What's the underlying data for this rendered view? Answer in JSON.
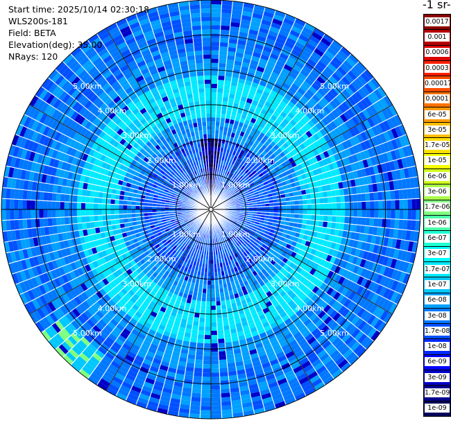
{
  "info": {
    "start_time": "Start time: 2025/10/14 02:30:18",
    "instrument": "WLS200s-181",
    "field": "Field: BETA",
    "elevation": "Elevation(deg): 35.00",
    "nrays": "NRays: 120"
  },
  "colorbar": {
    "unit_label": "-1 sr-",
    "labels": [
      "0.0017",
      "0.001",
      "0.0006",
      "0.0003",
      "0.00017",
      "0.0001",
      "6e-05",
      "3e-05",
      "1.7e-05",
      "1e-05",
      "6e-06",
      "3e-06",
      "1.7e-06",
      "1e-06",
      "6e-07",
      "3e-07",
      "1.7e-07",
      "1e-07",
      "6e-08",
      "3e-08",
      "1.7e-08",
      "1e-08",
      "6e-09",
      "3e-09",
      "1.7e-09",
      "1e-09"
    ],
    "colors": [
      "#8b0000",
      "#b40000",
      "#dc0000",
      "#ff1e00",
      "#ff4b00",
      "#ff7300",
      "#ff9a00",
      "#ffbd00",
      "#ffe000",
      "#f5ff00",
      "#d2ff1e",
      "#aaff4b",
      "#80ff80",
      "#4bffaa",
      "#1effd2",
      "#00ffff",
      "#00eaff",
      "#00c8ff",
      "#00a0ff",
      "#0078ff",
      "#0050ff",
      "#0028ff",
      "#0000ff",
      "#0000c8",
      "#00008c",
      "#00005a"
    ]
  },
  "ppi": {
    "range_ring_labels": [
      "1.00km",
      "2.00km",
      "3.00km",
      "4.00km",
      "5.00km"
    ]
  },
  "chart_data": {
    "type": "heatmap",
    "subtype": "polar PPI scan",
    "field": "BETA",
    "nrays": 120,
    "elevation_deg": 35.0,
    "range_rings_km": [
      1.0,
      2.0,
      3.0,
      4.0,
      5.0
    ],
    "max_range_km": 6.0,
    "azimuth_spokes_deg": [
      0,
      30,
      60,
      90,
      120,
      150,
      180,
      210,
      240,
      270,
      300,
      330
    ],
    "color_scale": "log",
    "color_range": [
      1e-09,
      0.0017
    ],
    "background_level": 1e-08,
    "features": [
      {
        "range_km": [
          2.0,
          4.5
        ],
        "level": 1.7e-07
      },
      {
        "azimuth_deg": [
          350,
          10
        ],
        "range_km": [
          0.2,
          2.0
        ],
        "level": 1e-09
      },
      {
        "azimuth_deg": [
          215,
          235
        ],
        "range_km": [
          5.2,
          6.0
        ],
        "level": 1.7e-06
      }
    ]
  }
}
